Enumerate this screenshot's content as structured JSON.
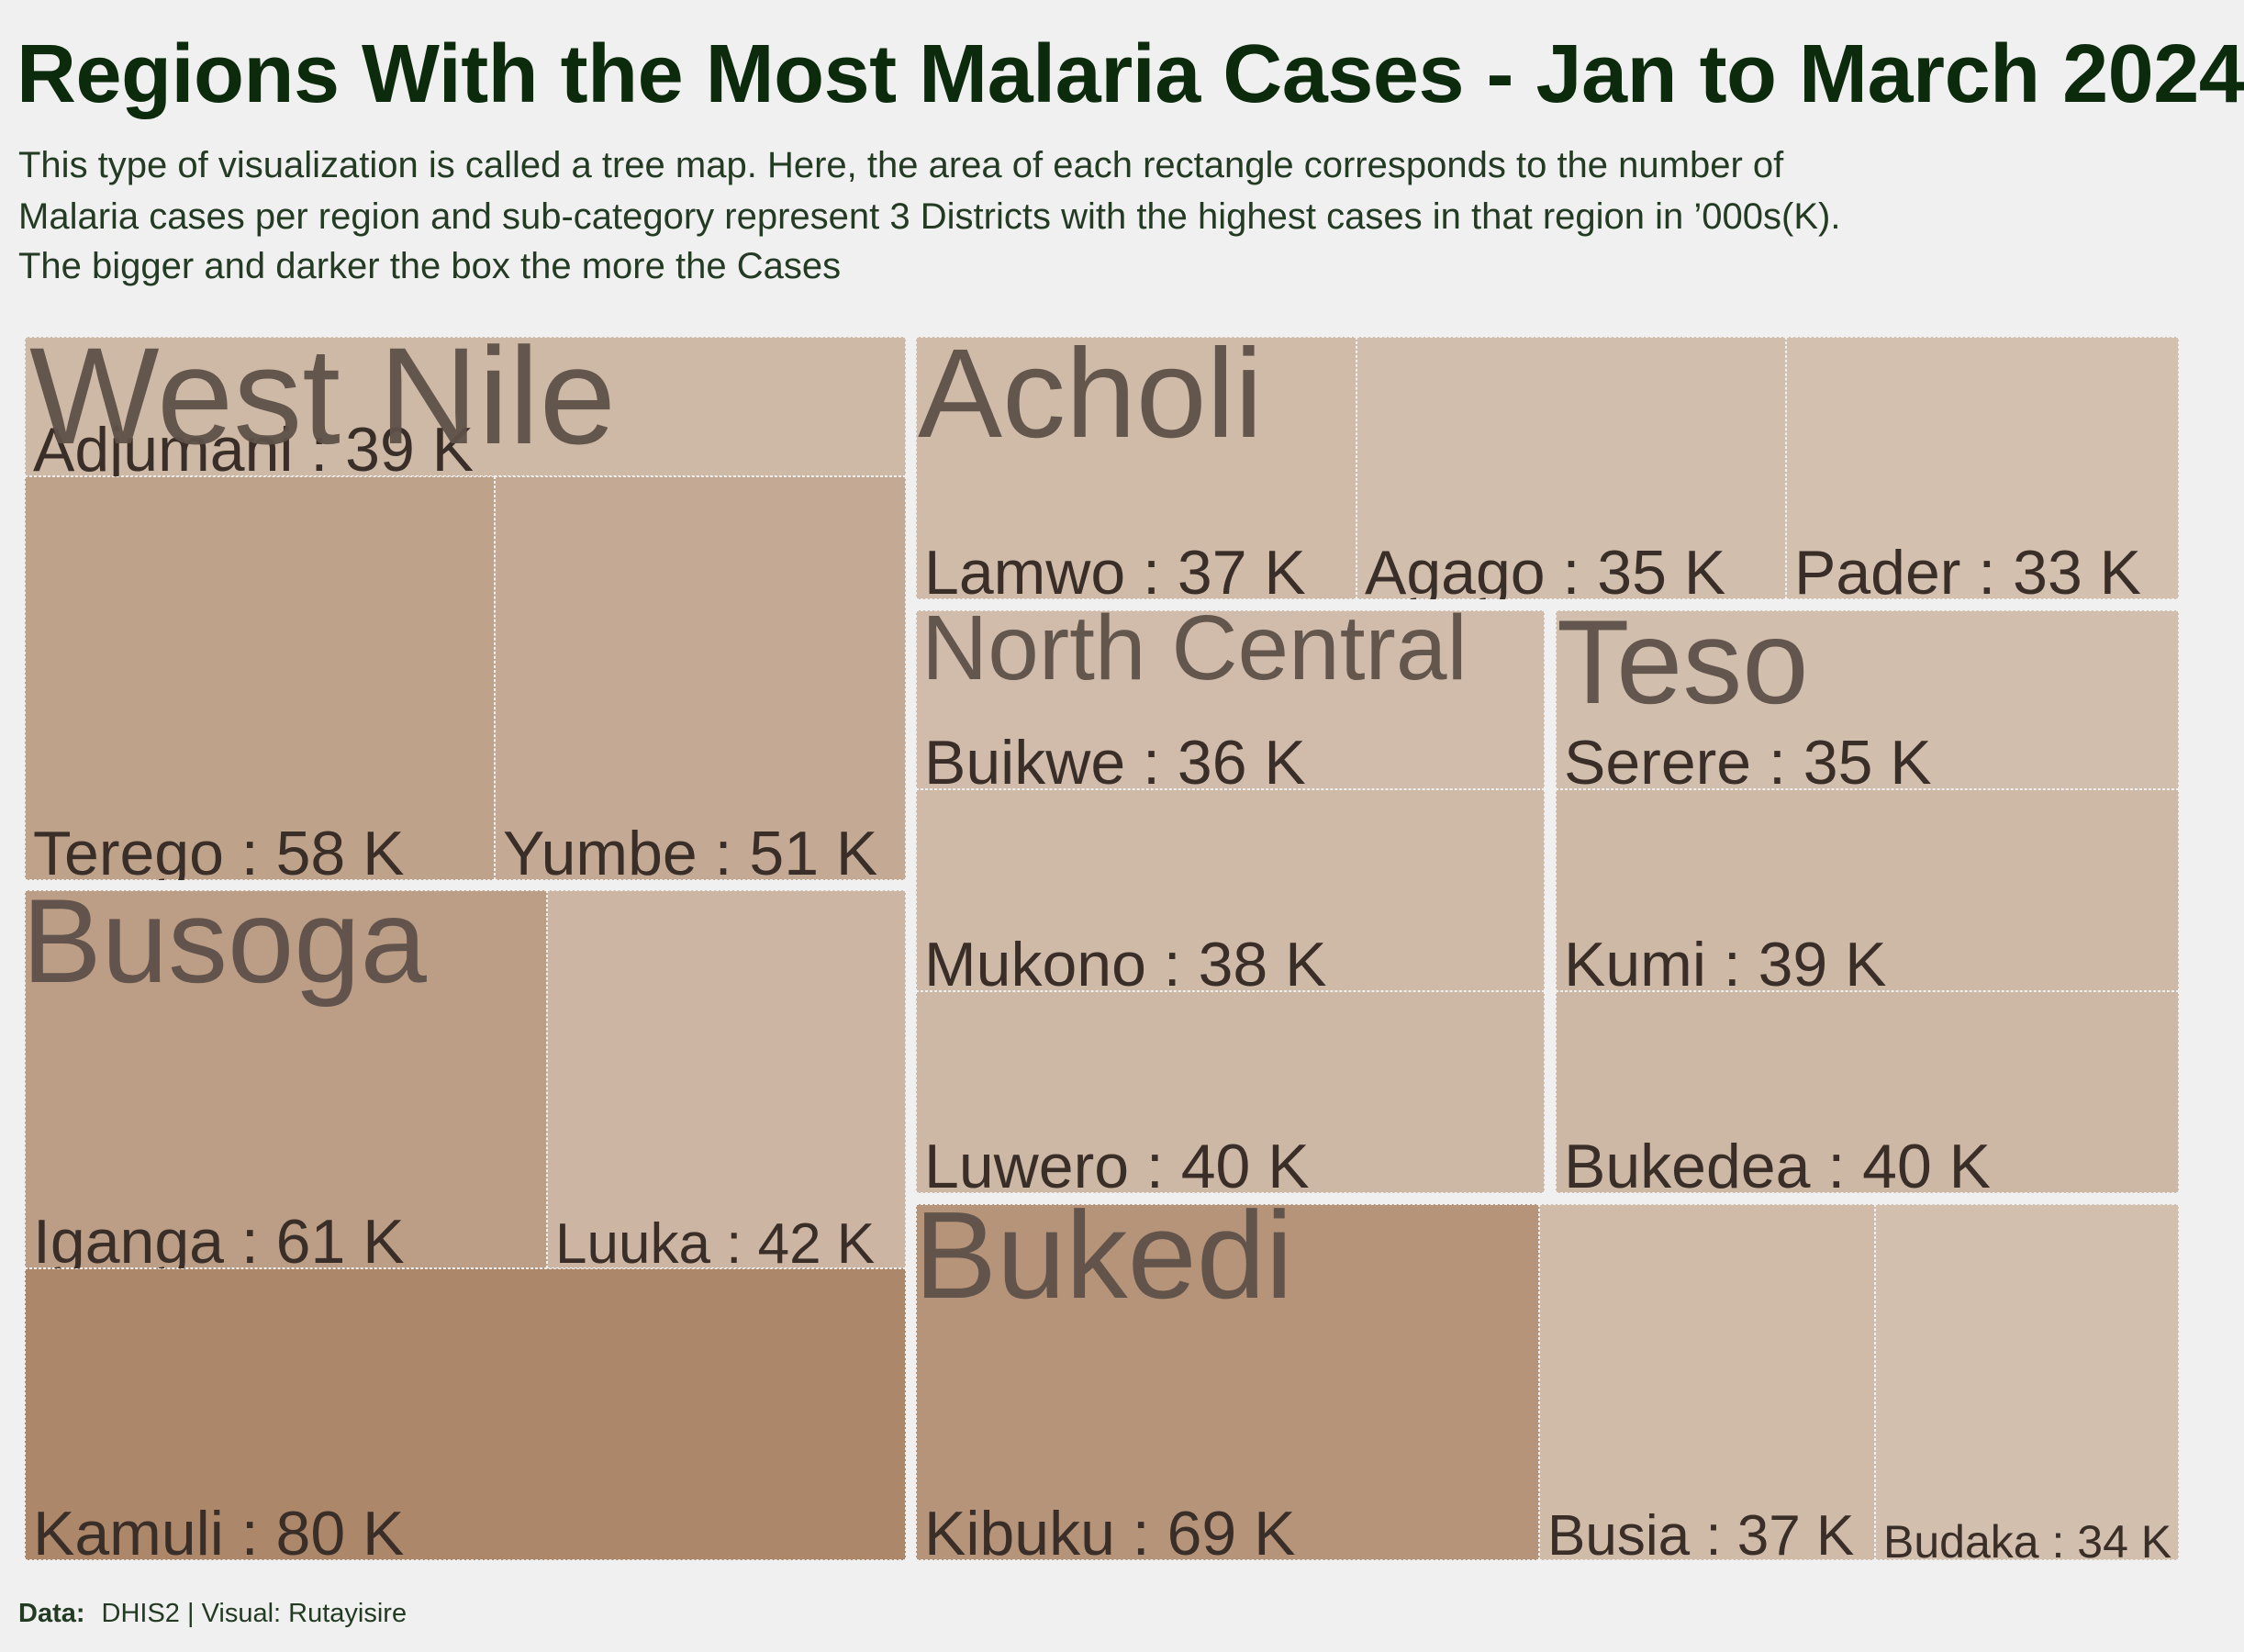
{
  "title": "Regions With the Most Malaria Cases - Jan to March 2024",
  "subtitle": [
    "This type of visualization is called a tree map. Here, the area of each rectangle corresponds to the number of",
    "Malaria cases per region and sub-category represent 3 Districts with the highest cases in that region in ’000s(K).",
    "The bigger and darker the box the more the Cases"
  ],
  "caption": {
    "data_label": "Data:",
    "text": "DHIS2 | Visual: Rutayisire"
  },
  "colors": {
    "background": "#f0f0f0",
    "title": "#0c2a0c",
    "low": "#d3c0af",
    "high": "#ad876a"
  },
  "chart_data": {
    "type": "treemap",
    "unit": "K",
    "regions": [
      {
        "name": "West Nile",
        "districts": [
          {
            "name": "Adjumani",
            "value": 39
          },
          {
            "name": "Terego",
            "value": 58
          },
          {
            "name": "Yumbe",
            "value": 51
          }
        ]
      },
      {
        "name": "Busoga",
        "districts": [
          {
            "name": "Iganga",
            "value": 61
          },
          {
            "name": "Luuka",
            "value": 42
          },
          {
            "name": "Kamuli",
            "value": 80
          }
        ]
      },
      {
        "name": "Acholi",
        "districts": [
          {
            "name": "Lamwo",
            "value": 37
          },
          {
            "name": "Agago",
            "value": 35
          },
          {
            "name": "Pader",
            "value": 33
          }
        ]
      },
      {
        "name": "North Central",
        "districts": [
          {
            "name": "Buikwe",
            "value": 36
          },
          {
            "name": "Mukono",
            "value": 38
          },
          {
            "name": "Luwero",
            "value": 40
          }
        ]
      },
      {
        "name": "Teso",
        "districts": [
          {
            "name": "Serere",
            "value": 35
          },
          {
            "name": "Kumi",
            "value": 39
          },
          {
            "name": "Bukedea",
            "value": 40
          }
        ]
      },
      {
        "name": "Bukedi",
        "districts": [
          {
            "name": "Kibuku",
            "value": 69
          },
          {
            "name": "Busia",
            "value": 37
          },
          {
            "name": "Budaka",
            "value": 34
          }
        ]
      }
    ]
  }
}
